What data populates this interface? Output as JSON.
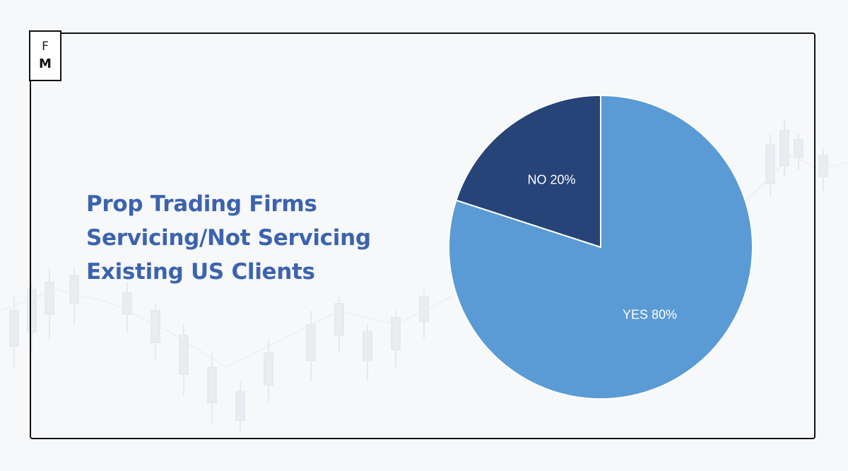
{
  "logo": {
    "letter_top": "F",
    "letter_bottom": "M"
  },
  "title_lines": [
    "Prop Trading Firms",
    "Servicing/Not Servicing",
    "Existing US Clients"
  ],
  "colors": {
    "title": "#3c63ae",
    "yes": "#5b9bd5",
    "no": "#264478"
  },
  "chart_data": {
    "type": "pie",
    "slices": [
      {
        "label": "YES 80%",
        "category": "YES",
        "value": 80,
        "color": "#5b9bd5"
      },
      {
        "label": "NO 20%",
        "category": "NO",
        "value": 20,
        "color": "#264478"
      }
    ]
  }
}
